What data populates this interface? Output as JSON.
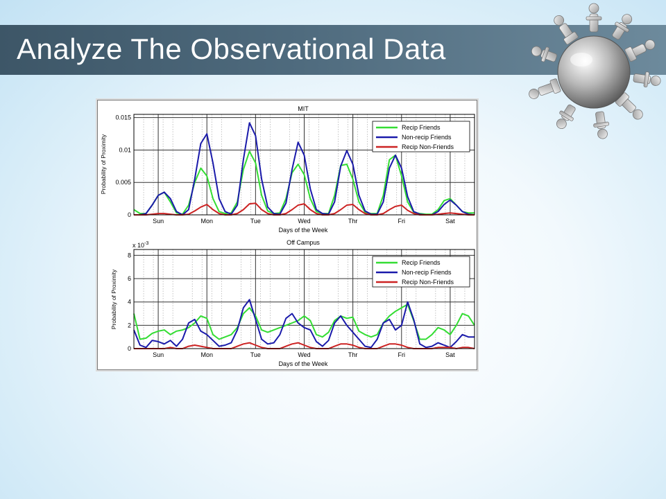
{
  "slide": {
    "title": "Analyze The Observational Data"
  },
  "colors": {
    "recip_friends": "#33dd33",
    "nonrecip_friends": "#1a1aaa",
    "recip_nonfriends": "#cc2222",
    "title_bar": "#4a6474"
  },
  "icons": {
    "logo": "globe-with-people-icon"
  },
  "chart_data": [
    {
      "type": "line",
      "title": "MIT",
      "xlabel": "Days of the Week",
      "ylabel": "Probability of Proximity",
      "x_tick_labels": [
        "Sun",
        "Mon",
        "Tue",
        "Wed",
        "Thr",
        "Fri",
        "Sat"
      ],
      "y_ticks": [
        0,
        0.005,
        0.01,
        0.015
      ],
      "y_tick_labels": [
        "0",
        "0.005",
        "0.01",
        "0.015"
      ],
      "ylim": [
        0,
        0.0155
      ],
      "xlim": [
        0,
        7
      ],
      "grid": true,
      "legend_position": "top-right",
      "x": [
        0,
        0.125,
        0.25,
        0.375,
        0.5,
        0.625,
        0.75,
        0.875,
        1,
        1.125,
        1.25,
        1.375,
        1.5,
        1.625,
        1.75,
        1.875,
        2,
        2.125,
        2.25,
        2.375,
        2.5,
        2.625,
        2.75,
        2.875,
        3,
        3.125,
        3.25,
        3.375,
        3.5,
        3.625,
        3.75,
        3.875,
        4,
        4.125,
        4.25,
        4.375,
        4.5,
        4.625,
        4.75,
        4.875,
        5,
        5.125,
        5.25,
        5.375,
        5.5,
        5.625,
        5.75,
        5.875,
        6,
        6.125,
        6.25,
        6.375,
        6.5,
        6.625,
        6.75,
        6.875,
        7
      ],
      "series": [
        {
          "name": "Recip Friends",
          "values": [
            0.0008,
            0.0002,
            0.0002,
            0.0015,
            0.003,
            0.0035,
            0.002,
            0.0003,
            0.0001,
            0.0015,
            0.005,
            0.0072,
            0.006,
            0.0025,
            0.0005,
            0.0002,
            0.0003,
            0.002,
            0.007,
            0.0098,
            0.008,
            0.003,
            0.0006,
            0.0002,
            0.0003,
            0.0025,
            0.0065,
            0.0078,
            0.0062,
            0.0025,
            0.0005,
            0.0002,
            0.0002,
            0.003,
            0.0076,
            0.0078,
            0.0055,
            0.002,
            0.0004,
            0.0002,
            0.0002,
            0.003,
            0.0085,
            0.0092,
            0.006,
            0.002,
            0.0004,
            0.0002,
            0.0001,
            0.0001,
            0.0008,
            0.0022,
            0.0025,
            0.0015,
            0.0005,
            0.0003,
            0.0003
          ]
        },
        {
          "name": "Non-recip Friends",
          "values": [
            0.0,
            0.0,
            0.0002,
            0.0015,
            0.003,
            0.0035,
            0.0025,
            0.0005,
            0.0,
            0.0008,
            0.0055,
            0.011,
            0.0125,
            0.008,
            0.0025,
            0.0005,
            0.0001,
            0.0015,
            0.0085,
            0.0142,
            0.0122,
            0.0055,
            0.0012,
            0.0002,
            0.0001,
            0.0018,
            0.007,
            0.0112,
            0.0092,
            0.004,
            0.0008,
            0.0002,
            0.0001,
            0.002,
            0.0075,
            0.0099,
            0.0078,
            0.003,
            0.0006,
            0.0001,
            0.0001,
            0.002,
            0.0072,
            0.0092,
            0.0072,
            0.0028,
            0.0005,
            0.0001,
            0.0,
            0.0,
            0.0005,
            0.0016,
            0.0023,
            0.0015,
            0.0005,
            0.0001,
            0.0
          ]
        },
        {
          "name": "Recip Non-Friends",
          "values": [
            0.0,
            0.0,
            0.0,
            0.0001,
            0.0002,
            0.0002,
            0.0001,
            0.0,
            0.0,
            0.0001,
            0.0006,
            0.0012,
            0.0016,
            0.0008,
            0.0002,
            0.0,
            0.0,
            0.0002,
            0.0008,
            0.0017,
            0.0018,
            0.0008,
            0.0002,
            0.0,
            0.0,
            0.0002,
            0.0008,
            0.0015,
            0.0017,
            0.0008,
            0.0002,
            0.0,
            0.0,
            0.0002,
            0.0008,
            0.0015,
            0.0016,
            0.0008,
            0.0002,
            0.0,
            0.0,
            0.0002,
            0.0008,
            0.0013,
            0.0015,
            0.0007,
            0.0002,
            0.0,
            0.0,
            0.0,
            0.0001,
            0.0002,
            0.0003,
            0.0002,
            0.0001,
            0.0,
            0.0
          ]
        }
      ]
    },
    {
      "type": "line",
      "title": "Off Campus",
      "xlabel": "Days of the Week",
      "ylabel": "Probability of Proximity",
      "y_scale_label": "x 10",
      "y_scale_exponent": "-3",
      "x_tick_labels": [
        "Sun",
        "Mon",
        "Tue",
        "Wed",
        "Thr",
        "Fri",
        "Sat"
      ],
      "y_ticks": [
        0,
        0.002,
        0.004,
        0.006,
        0.008
      ],
      "y_tick_labels": [
        "0",
        "2",
        "4",
        "6",
        "8"
      ],
      "ylim": [
        0,
        0.0085
      ],
      "xlim": [
        0,
        7
      ],
      "grid": true,
      "legend_position": "top-right",
      "x": [
        0,
        0.125,
        0.25,
        0.375,
        0.5,
        0.625,
        0.75,
        0.875,
        1,
        1.125,
        1.25,
        1.375,
        1.5,
        1.625,
        1.75,
        1.875,
        2,
        2.125,
        2.25,
        2.375,
        2.5,
        2.625,
        2.75,
        2.875,
        3,
        3.125,
        3.25,
        3.375,
        3.5,
        3.625,
        3.75,
        3.875,
        4,
        4.125,
        4.25,
        4.375,
        4.5,
        4.625,
        4.75,
        4.875,
        5,
        5.125,
        5.25,
        5.375,
        5.5,
        5.625,
        5.75,
        5.875,
        6,
        6.125,
        6.25,
        6.375,
        6.5,
        6.625,
        6.75,
        6.875,
        7
      ],
      "series": [
        {
          "name": "Recip Friends",
          "values": [
            0.003,
            0.0008,
            0.0009,
            0.0013,
            0.0015,
            0.0016,
            0.0012,
            0.0015,
            0.0016,
            0.0018,
            0.0022,
            0.0028,
            0.0026,
            0.0012,
            0.0008,
            0.001,
            0.0012,
            0.0018,
            0.003,
            0.0035,
            0.0028,
            0.0016,
            0.0014,
            0.0016,
            0.0018,
            0.002,
            0.0022,
            0.0024,
            0.0028,
            0.0024,
            0.0012,
            0.001,
            0.0014,
            0.0024,
            0.0028,
            0.0026,
            0.0027,
            0.0015,
            0.0012,
            0.001,
            0.0012,
            0.0022,
            0.0028,
            0.0032,
            0.0035,
            0.0038,
            0.0024,
            0.0008,
            0.0008,
            0.0012,
            0.0018,
            0.0016,
            0.0012,
            0.002,
            0.003,
            0.0028,
            0.002
          ]
        },
        {
          "name": "Non-recip Friends",
          "values": [
            0.0016,
            0.0003,
            0.0001,
            0.0007,
            0.0006,
            0.0004,
            0.0007,
            0.0002,
            0.0008,
            0.0022,
            0.0025,
            0.0015,
            0.0012,
            0.0007,
            0.0002,
            0.0003,
            0.0005,
            0.0016,
            0.0035,
            0.0042,
            0.0025,
            0.0008,
            0.0004,
            0.0005,
            0.0012,
            0.0026,
            0.003,
            0.0022,
            0.0018,
            0.0016,
            0.0006,
            0.0002,
            0.0007,
            0.0022,
            0.0028,
            0.002,
            0.0014,
            0.0008,
            0.0002,
            0.0001,
            0.0008,
            0.0022,
            0.0025,
            0.0016,
            0.002,
            0.004,
            0.0025,
            0.0004,
            0.0001,
            0.0002,
            0.0005,
            0.0003,
            0.0001,
            0.0006,
            0.0012,
            0.001,
            0.001
          ]
        },
        {
          "name": "Recip Non-Friends",
          "values": [
            0.0,
            0.0,
            0.0,
            0.0,
            0.0,
            0.0,
            0.0001,
            0.0,
            0.0,
            0.0002,
            0.0003,
            0.0002,
            0.0001,
            0.0,
            0.0,
            0.0,
            0.0,
            0.0002,
            0.0004,
            0.0005,
            0.0003,
            0.0001,
            0.0,
            0.0,
            0.0,
            0.0002,
            0.0004,
            0.0005,
            0.0003,
            0.0001,
            0.0,
            0.0,
            0.0,
            0.0002,
            0.0004,
            0.0004,
            0.0003,
            0.0001,
            0.0,
            0.0,
            0.0,
            0.0002,
            0.0004,
            0.0004,
            0.0003,
            0.0001,
            0.0,
            0.0,
            0.0,
            0.0,
            0.0001,
            0.0001,
            0.0001,
            0.0,
            0.0001,
            0.0001,
            0.0
          ]
        }
      ]
    }
  ]
}
